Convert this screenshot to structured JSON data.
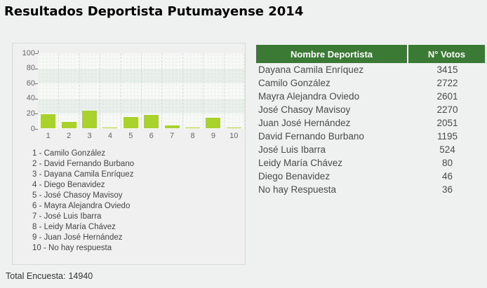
{
  "title": "Resultados Deportista Putumayense 2014",
  "colors": {
    "bar_fill": "#a9d32c",
    "table_header_bg": "#3a7a35",
    "table_header_text": "#ffffff",
    "band_light": "#f7f9f7",
    "band_dark": "#e9efeb"
  },
  "chart_data": {
    "type": "bar",
    "title": "",
    "xlabel": "",
    "ylabel": "",
    "categories": [
      "1",
      "2",
      "3",
      "4",
      "5",
      "6",
      "7",
      "8",
      "9",
      "10"
    ],
    "values": [
      18.2,
      8.0,
      22.9,
      0.3,
      15.2,
      17.4,
      3.5,
      0.5,
      13.7,
      0.2
    ],
    "unit": "percent of total votes",
    "ylim": [
      0,
      100
    ],
    "yticks": [
      0,
      20,
      40,
      60,
      80,
      100
    ],
    "grid": true,
    "legend_position": "below",
    "legend": [
      "1 - Camilo González",
      "2 - David Fernando Burbano",
      "3 - Dayana Camila Enríquez",
      "4 - Diego Benavidez",
      "5 - José Chasoy Mavisoy",
      "6 - Mayra Alejandra Oviedo",
      "7 - José Luis Ibarra",
      "8 - Leidy María Chávez",
      "9 - Juan José Hernández",
      "10 - No hay respuesta"
    ]
  },
  "table": {
    "headers": [
      "Nombre Deportista",
      "N° Votos"
    ],
    "rows": [
      {
        "name": "Dayana Camila Enríquez",
        "votes": "3415"
      },
      {
        "name": "Camilo González",
        "votes": "2722"
      },
      {
        "name": "Mayra Alejandra Oviedo",
        "votes": "2601"
      },
      {
        "name": "José Chasoy Mavisoy",
        "votes": "2270"
      },
      {
        "name": "Juan José Hernández",
        "votes": "2051"
      },
      {
        "name": "David Fernando Burbano",
        "votes": "1195"
      },
      {
        "name": "José Luis Ibarra",
        "votes": "524"
      },
      {
        "name": "Leidy María Chávez",
        "votes": "80"
      },
      {
        "name": "Diego Benavidez",
        "votes": "46"
      },
      {
        "name": "No hay Respuesta",
        "votes": "36"
      }
    ]
  },
  "footer": {
    "label": "Total Encuesta:",
    "value": "14940"
  }
}
